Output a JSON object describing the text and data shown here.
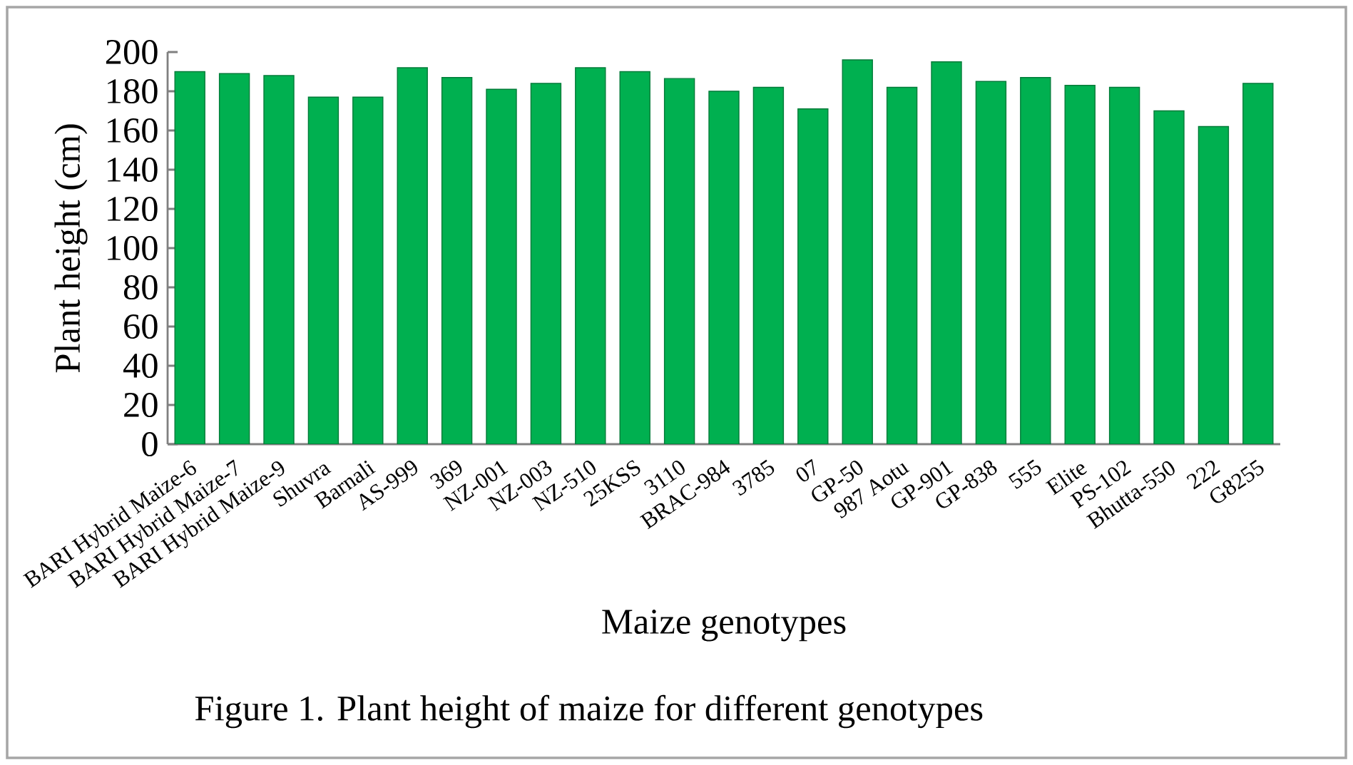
{
  "chart_data": {
    "type": "bar",
    "categories": [
      "BARI Hybrid Maize-6",
      "BARI Hybrid Maize-7",
      "BARI Hybrid Maize-9",
      "Shuvra",
      "Barnali",
      "AS-999",
      "369",
      "NZ-001",
      "NZ-003",
      "NZ-510",
      "25KSS",
      "3110",
      "BRAC-984",
      "3785",
      "07",
      "GP-50",
      "987 Aotu",
      "GP-901",
      "GP-838",
      "555",
      "Elite",
      "PS-102",
      "Bhutta-550",
      "222",
      "G8255"
    ],
    "values": [
      190,
      189,
      188,
      177,
      177,
      192,
      187,
      181,
      184,
      192,
      190,
      186.5,
      180,
      182,
      171,
      196,
      182,
      195,
      185,
      187,
      183,
      182,
      170,
      162,
      184
    ],
    "color": "#00b050",
    "ylim": [
      0,
      200
    ],
    "yticks": [
      0,
      20,
      40,
      60,
      80,
      100,
      120,
      140,
      160,
      180,
      200
    ],
    "xlabel": "Maize genotypes",
    "ylabel": "Plant height (cm)",
    "annotations": [
      "Figure 1. Plant height of maize for different genotypes"
    ]
  }
}
